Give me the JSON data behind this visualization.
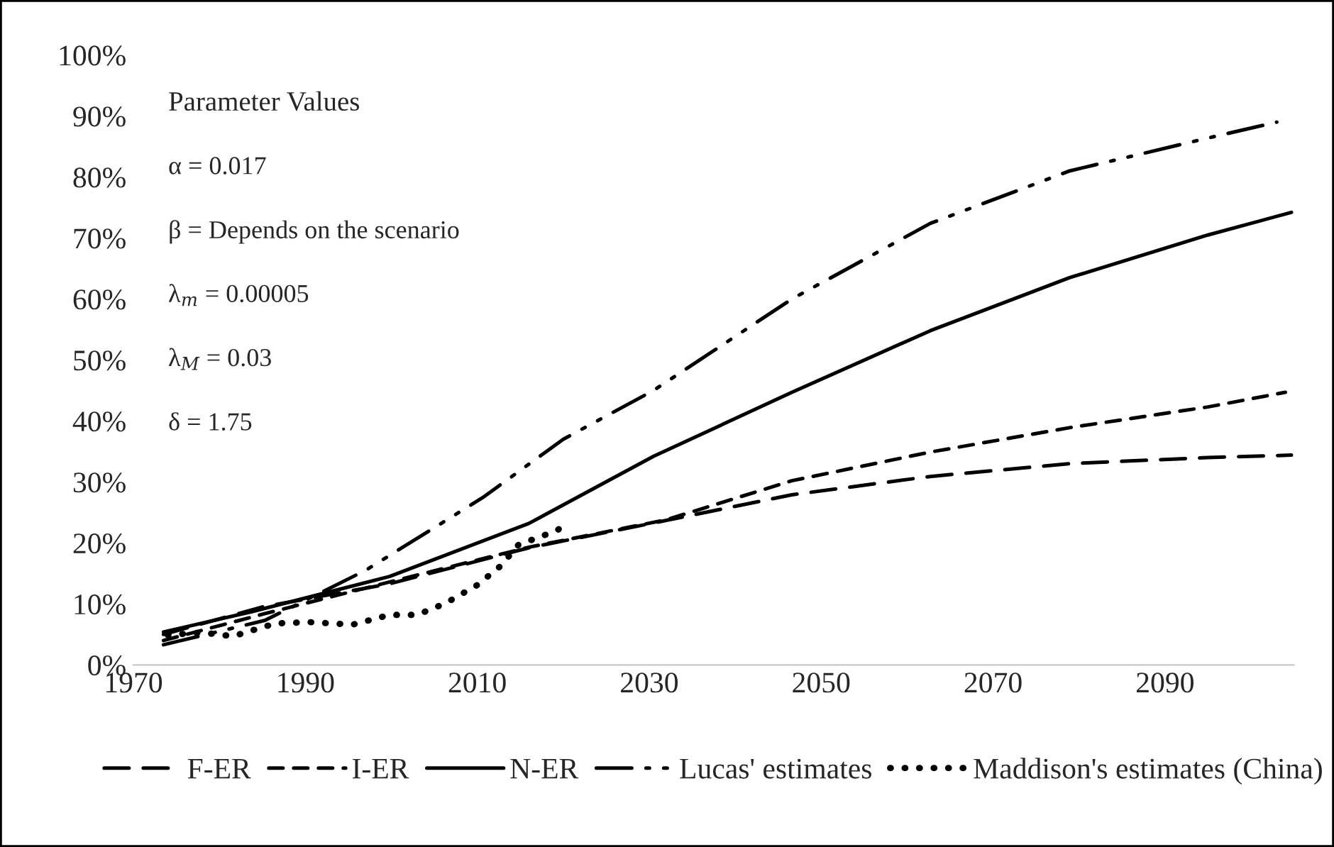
{
  "chart_data": {
    "type": "line",
    "xlim": [
      1970,
      2105
    ],
    "xticks": [
      1970,
      1990,
      2010,
      2030,
      2050,
      2070,
      2090
    ],
    "ylim": [
      0,
      100
    ],
    "yticks": [
      {
        "value": 0,
        "label": "0%"
      },
      {
        "value": 10,
        "label": "10%"
      },
      {
        "value": 20,
        "label": "20%"
      },
      {
        "value": 30,
        "label": "30%"
      },
      {
        "value": 40,
        "label": "40%"
      },
      {
        "value": 50,
        "label": "50%"
      },
      {
        "value": 60,
        "label": "60%"
      },
      {
        "value": 70,
        "label": "70%"
      },
      {
        "value": 80,
        "label": "80%"
      },
      {
        "value": 90,
        "label": "90%"
      },
      {
        "value": 100,
        "label": "100%"
      }
    ],
    "grid": false,
    "legend": "bottom",
    "annotations": [
      "Parameter Values",
      "α = 0.017",
      "β = Depends on the scenario",
      "λ$_{m}$ = 0.00005",
      "λ$_{M}$ = 0.03",
      "δ = 1.75"
    ],
    "series": [
      {
        "name": "F-ER",
        "color": "#000000",
        "line_style": "long dashed",
        "x": [
          1973.5,
          1985,
          1999.8,
          2016,
          2032,
          2046.6,
          2062.7,
          2078.9,
          2095,
          2104.7
        ],
        "values": [
          5.0,
          9.5,
          13.3,
          19.2,
          23.7,
          27.9,
          30.9,
          33.0,
          34.0,
          34.4
        ]
      },
      {
        "name": "I-ER",
        "color": "#000000",
        "line_style": "dashed",
        "x": [
          1973.5,
          1985,
          1999.8,
          2016,
          2032,
          2046.6,
          2062.7,
          2078.9,
          2095,
          2104
        ],
        "values": [
          4.0,
          8.3,
          13.6,
          19.3,
          23.8,
          30.2,
          34.9,
          38.9,
          42.3,
          44.7
        ]
      },
      {
        "name": "N-ER",
        "color": "#000000",
        "line_style": "solid",
        "x": [
          1973.5,
          1983.7,
          1999.8,
          2016,
          2030.5,
          2046.6,
          2062.7,
          2078.9,
          2095,
          2104.7
        ],
        "values": [
          5.4,
          8.7,
          14.5,
          23.2,
          34.2,
          44.7,
          54.8,
          63.5,
          70.5,
          74.2
        ]
      },
      {
        "name": "Lucas' estimates",
        "color": "#000000",
        "line_style": "dashdot",
        "x": [
          1973.5,
          1985.3,
          1997,
          2010.6,
          2020,
          2030.5,
          2046.6,
          2062.7,
          2078.9,
          2095,
          2103
        ],
        "values": [
          3.3,
          7.3,
          15.5,
          27.4,
          37.0,
          45.0,
          60.0,
          72.4,
          81.0,
          86.4,
          89.0
        ]
      },
      {
        "name": "Maddison's estimates (China)",
        "color": "#000000",
        "line_style": "dotted",
        "x": [
          1974,
          1978,
          1981.6,
          1986.5,
          1990.6,
          1995.5,
          1999.8,
          2003,
          2006.3,
          2010,
          2012.7,
          2014.8,
          2019.2,
          2020.5
        ],
        "values": [
          4.9,
          5.3,
          4.7,
          6.8,
          7.0,
          6.6,
          8.2,
          8.2,
          10.1,
          13.1,
          16.2,
          19.7,
          22.0,
          23.2
        ]
      }
    ]
  }
}
